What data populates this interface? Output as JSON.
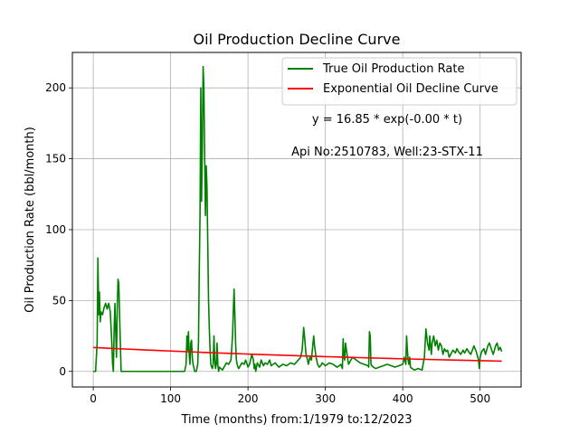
{
  "chart_data": {
    "type": "line",
    "title": "Oil Production Decline Curve",
    "xlabel": "Time (months) from:1/1979 to:12/2023",
    "ylabel": "Oil Production Rate (bbl/month)",
    "xlim": [
      -27,
      553
    ],
    "ylim": [
      -11,
      225
    ],
    "xticks": [
      0,
      100,
      200,
      300,
      400,
      500
    ],
    "yticks": [
      0,
      50,
      100,
      150,
      200
    ],
    "grid": true,
    "legend_position": "top-right",
    "annotations": [
      "y = 16.85 * exp(-0.00 * t)",
      "Api No:2510783, Well:23-STX-11"
    ],
    "series": [
      {
        "name": "True Oil Production Rate",
        "color": "#008000",
        "x": [
          0,
          3,
          5,
          6,
          7,
          8,
          9,
          10,
          12,
          14,
          16,
          18,
          20,
          22,
          24,
          25,
          26,
          27,
          28,
          29,
          30,
          31,
          32,
          33,
          34,
          36,
          40,
          60,
          80,
          100,
          118,
          120,
          121,
          122,
          123,
          124,
          125,
          126,
          127,
          128,
          129,
          130,
          131,
          132,
          133,
          134,
          135,
          136,
          137,
          138,
          139,
          140,
          141,
          142,
          143,
          144,
          145,
          146,
          147,
          148,
          149,
          150,
          151,
          152,
          153,
          154,
          155,
          156,
          157,
          158,
          159,
          160,
          161,
          162,
          163,
          165,
          167,
          170,
          172,
          175,
          178,
          180,
          182,
          183,
          184,
          185,
          186,
          187,
          188,
          190,
          192,
          195,
          197,
          200,
          202,
          205,
          207,
          208,
          209,
          210,
          212,
          215,
          217,
          220,
          222,
          225,
          228,
          230,
          235,
          240,
          245,
          250,
          255,
          260,
          265,
          268,
          270,
          272,
          273,
          275,
          277,
          278,
          280,
          282,
          284,
          285,
          286,
          288,
          290,
          292,
          294,
          296,
          298,
          300,
          305,
          310,
          315,
          318,
          320,
          322,
          323,
          324,
          325,
          326,
          328,
          330,
          335,
          340,
          345,
          350,
          355,
          356,
          357,
          358,
          359,
          360,
          362,
          365,
          370,
          375,
          380,
          385,
          390,
          395,
          400,
          402,
          404,
          405,
          406,
          407,
          408,
          409,
          410,
          412,
          415,
          420,
          425,
          428,
          430,
          432,
          434,
          435,
          436,
          437,
          438,
          440,
          442,
          444,
          446,
          448,
          450,
          452,
          454,
          456,
          458,
          460,
          462,
          465,
          468,
          470,
          472,
          475,
          478,
          480,
          483,
          485,
          488,
          490,
          492,
          495,
          497,
          498,
          499,
          500,
          502,
          505,
          507,
          510,
          512,
          515,
          517,
          520,
          522,
          524,
          526,
          528
        ],
        "y": [
          0,
          0,
          20,
          80,
          40,
          56,
          35,
          42,
          40,
          45,
          48,
          44,
          48,
          42,
          20,
          5,
          0,
          30,
          48,
          28,
          10,
          45,
          65,
          62,
          40,
          0,
          0,
          0,
          0,
          0,
          0,
          5,
          25,
          15,
          28,
          12,
          5,
          20,
          22,
          10,
          5,
          3,
          0,
          0,
          0,
          2,
          5,
          20,
          70,
          110,
          200,
          120,
          160,
          215,
          200,
          150,
          110,
          145,
          130,
          90,
          50,
          30,
          15,
          5,
          3,
          2,
          5,
          25,
          8,
          2,
          5,
          20,
          5,
          0,
          3,
          2,
          1,
          4,
          6,
          5,
          8,
          25,
          58,
          40,
          20,
          8,
          5,
          3,
          2,
          4,
          6,
          5,
          8,
          3,
          5,
          12,
          8,
          2,
          5,
          0,
          6,
          3,
          8,
          4,
          6,
          5,
          8,
          4,
          6,
          3,
          5,
          4,
          6,
          5,
          8,
          10,
          15,
          31,
          25,
          12,
          8,
          5,
          10,
          8,
          20,
          25,
          18,
          10,
          5,
          3,
          4,
          6,
          5,
          4,
          6,
          5,
          3,
          4,
          5,
          2,
          23,
          10,
          8,
          20,
          12,
          5,
          10,
          8,
          6,
          5,
          4,
          3,
          28,
          25,
          5,
          4,
          3,
          2,
          3,
          4,
          5,
          4,
          3,
          4,
          5,
          10,
          5,
          25,
          15,
          8,
          5,
          10,
          3,
          2,
          1,
          2,
          1,
          10,
          30,
          20,
          15,
          25,
          18,
          12,
          20,
          25,
          18,
          22,
          15,
          20,
          18,
          12,
          16,
          14,
          15,
          10,
          12,
          15,
          13,
          16,
          14,
          12,
          15,
          13,
          16,
          14,
          12,
          15,
          18,
          14,
          10,
          8,
          2,
          10,
          14,
          16,
          12,
          18,
          20,
          15,
          12,
          18,
          20,
          15,
          17,
          14
        ],
        "x_start": 0,
        "x_end": 528
      },
      {
        "name": "Exponential Oil Decline Curve",
        "color": "#ff0000",
        "type": "exponential",
        "params": {
          "a": 16.85,
          "b": -0.0016
        },
        "x_start": 0,
        "x_end": 528
      }
    ]
  }
}
